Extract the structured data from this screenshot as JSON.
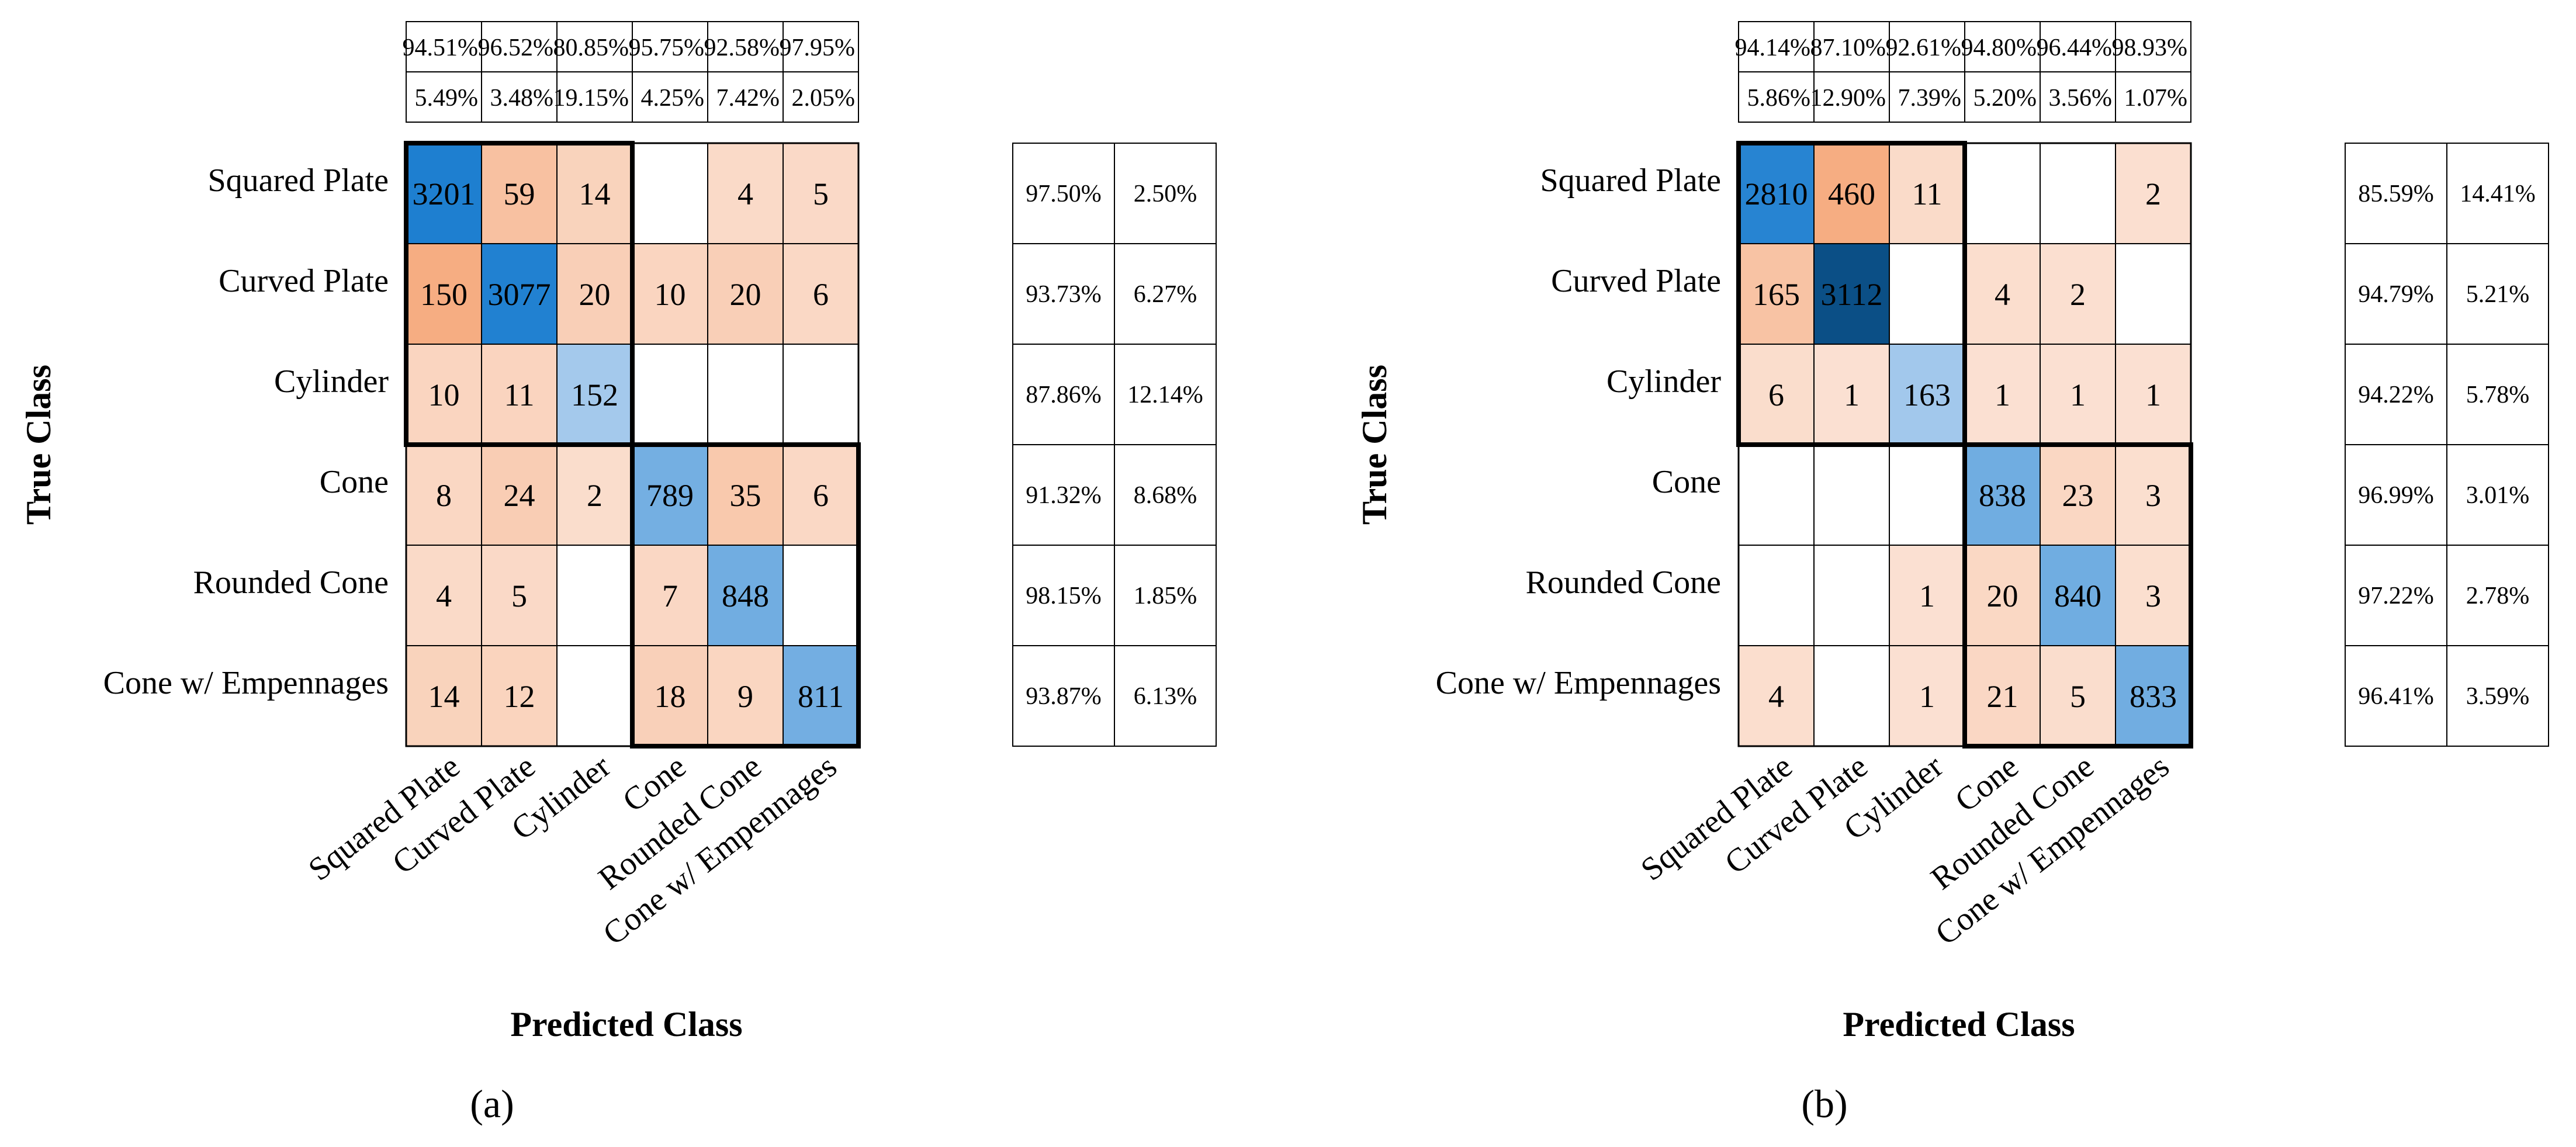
{
  "chart_data": [
    {
      "type": "heatmap",
      "panel_label": "(a)",
      "xlabel": "Predicted Class",
      "ylabel": "True Class",
      "classes": [
        "Squared Plate",
        "Curved Plate",
        "Cylinder",
        "Cone",
        "Rounded Cone",
        "Cone w/ Empennages"
      ],
      "matrix": [
        [
          3201,
          59,
          14,
          null,
          4,
          5
        ],
        [
          150,
          3077,
          20,
          10,
          20,
          6
        ],
        [
          10,
          11,
          152,
          null,
          null,
          null
        ],
        [
          8,
          24,
          2,
          789,
          35,
          6
        ],
        [
          4,
          5,
          null,
          7,
          848,
          null
        ],
        [
          14,
          12,
          null,
          18,
          9,
          811
        ]
      ],
      "column_summary": {
        "correct": [
          "94.51%",
          "96.52%",
          "80.85%",
          "95.75%",
          "92.58%",
          "97.95%"
        ],
        "incorrect": [
          "5.49%",
          "3.48%",
          "19.15%",
          "4.25%",
          "7.42%",
          "2.05%"
        ]
      },
      "row_summary": {
        "correct": [
          "97.50%",
          "93.73%",
          "87.86%",
          "91.32%",
          "98.15%",
          "93.87%"
        ],
        "incorrect": [
          "2.50%",
          "6.27%",
          "12.14%",
          "8.68%",
          "1.85%",
          "6.13%"
        ]
      },
      "groups": [
        [
          0,
          2
        ],
        [
          3,
          5
        ]
      ]
    },
    {
      "type": "heatmap",
      "panel_label": "(b)",
      "xlabel": "Predicted Class",
      "ylabel": "True Class",
      "classes": [
        "Squared Plate",
        "Curved Plate",
        "Cylinder",
        "Cone",
        "Rounded Cone",
        "Cone w/ Empennages"
      ],
      "matrix": [
        [
          2810,
          460,
          11,
          null,
          null,
          2
        ],
        [
          165,
          3112,
          null,
          4,
          2,
          null
        ],
        [
          6,
          1,
          163,
          1,
          1,
          1
        ],
        [
          null,
          null,
          null,
          838,
          23,
          3
        ],
        [
          null,
          null,
          1,
          20,
          840,
          3
        ],
        [
          4,
          null,
          1,
          21,
          5,
          833
        ]
      ],
      "column_summary": {
        "correct": [
          "94.14%",
          "87.10%",
          "92.61%",
          "94.80%",
          "96.44%",
          "98.93%"
        ],
        "incorrect": [
          "5.86%",
          "12.90%",
          "7.39%",
          "5.20%",
          "3.56%",
          "1.07%"
        ]
      },
      "row_summary": {
        "correct": [
          "85.59%",
          "94.79%",
          "94.22%",
          "96.99%",
          "97.22%",
          "96.41%"
        ],
        "incorrect": [
          "14.41%",
          "5.21%",
          "5.78%",
          "3.01%",
          "2.78%",
          "3.59%"
        ]
      },
      "groups": [
        [
          0,
          2
        ],
        [
          3,
          5
        ]
      ]
    }
  ],
  "colors": {
    "diag_max": "#1e7fd0",
    "diag_min": "#c9def4",
    "diag_dark": "#0b4f86",
    "off_min": "#fbe3d6",
    "off_max": "#f6ad82",
    "border": "#000000"
  }
}
